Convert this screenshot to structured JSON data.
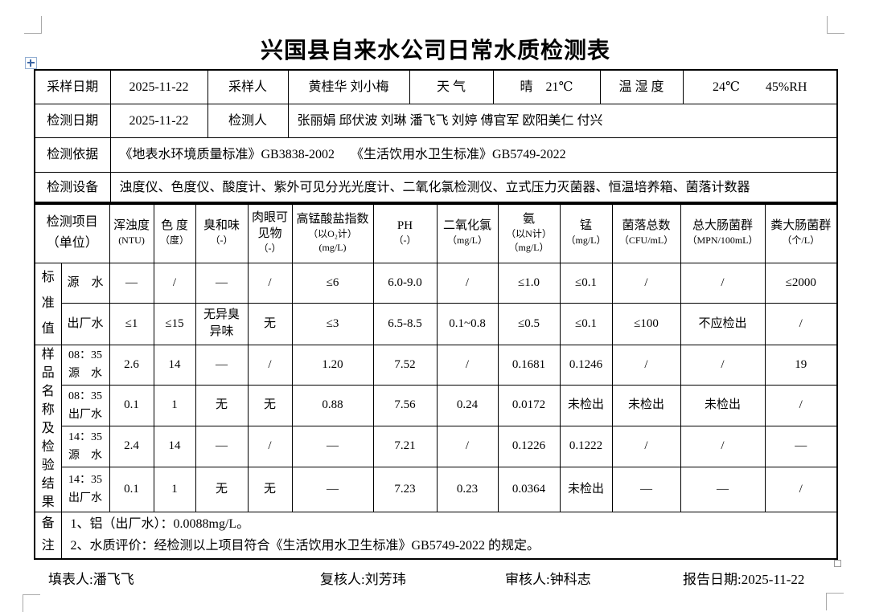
{
  "page": {
    "title": "兴国县自来水公司日常水质检测表"
  },
  "info": {
    "r1": {
      "l1": "采样日期",
      "v1": "2025-11-22",
      "l2": "采样人",
      "v2": "黄桂华 刘小梅",
      "l3": "天  气",
      "v3": "晴　21℃",
      "l4": "温 湿 度",
      "v4": "24℃　　45%RH"
    },
    "r2": {
      "l1": "检测日期",
      "v1": "2025-11-22",
      "l2": "检测人",
      "v2": "张丽娟 邱伏波 刘琳 潘飞飞 刘婷 傅官军 欧阳美仁 付兴"
    },
    "r3": {
      "l1": "检测依据",
      "v1": "《地表水环境质量标准》GB3838-2002　 《生活饮用水卫生标准》GB5749-2022"
    },
    "r4": {
      "l1": "检测设备",
      "v1": "浊度仪、色度仪、酸度计、紫外可见分光光度计、二氧化氯检测仪、立式压力灭菌器、恒温培养箱、菌落计数器"
    }
  },
  "grid": {
    "corner": "检测项目\n（单位）",
    "params": [
      {
        "name": "浑浊度",
        "unit": "(NTU)"
      },
      {
        "name": "色 度",
        "unit": "（度）"
      },
      {
        "name": "臭和味",
        "unit": "（-）"
      },
      {
        "name": "肉眼可\n见物",
        "unit": "（-）"
      },
      {
        "name": "高锰酸盐指数",
        "unit": "（以O₂计）\n(mg/L)"
      },
      {
        "name": "PH",
        "unit": "（-）"
      },
      {
        "name": "二氧化氯",
        "unit": "（mg/L）"
      },
      {
        "name": "氨",
        "unit": "（以N计）\n（mg/L）"
      },
      {
        "name": "锰",
        "unit": "（mg/L）"
      },
      {
        "name": "菌落总数",
        "unit": "（CFU/mL）"
      },
      {
        "name": "总大肠菌群",
        "unit": "（MPN/100mL）"
      },
      {
        "name": "粪大肠菌群",
        "unit": "（个/L）"
      }
    ],
    "standard": {
      "label": "标准值",
      "rows": [
        {
          "name": "源　水",
          "values": [
            "—",
            "/",
            "—",
            "/",
            "≤6",
            "6.0-9.0",
            "/",
            "≤1.0",
            "≤0.1",
            "/",
            "/",
            "≤2000"
          ]
        },
        {
          "name": "出厂水",
          "values": [
            "≤1",
            "≤15",
            "无异臭\n异味",
            "无",
            "≤3",
            "6.5-8.5",
            "0.1~0.8",
            "≤0.5",
            "≤0.1",
            "≤100",
            "不应检出",
            "/"
          ]
        }
      ]
    },
    "samples": {
      "label": "样品名称及检验结果",
      "rows": [
        {
          "name": "08：35\n源　水",
          "values": [
            "2.6",
            "14",
            "—",
            "/",
            "1.20",
            "7.52",
            "/",
            "0.1681",
            "0.1246",
            "/",
            "/",
            "19"
          ]
        },
        {
          "name": "08：35\n出厂水",
          "values": [
            "0.1",
            "1",
            "无",
            "无",
            "0.88",
            "7.56",
            "0.24",
            "0.0172",
            "未检出",
            "未检出",
            "未检出",
            "/"
          ]
        },
        {
          "name": "14：35\n源　水",
          "values": [
            "2.4",
            "14",
            "—",
            "/",
            "—",
            "7.21",
            "/",
            "0.1226",
            "0.1222",
            "/",
            "/",
            "—"
          ]
        },
        {
          "name": "14：35\n出厂水",
          "values": [
            "0.1",
            "1",
            "无",
            "无",
            "—",
            "7.23",
            "0.23",
            "0.0364",
            "未检出",
            "—",
            "—",
            "/"
          ]
        }
      ]
    },
    "notes": {
      "label": "备注",
      "lines": [
        "1、铝（出厂水）：0.0088mg/L。",
        "2、水质评价：经检测以上项目符合《生活饮用水卫生标准》GB5749-2022 的规定。"
      ]
    }
  },
  "footer": {
    "filled_by": "填表人:潘飞飞",
    "reviewed_by": "复核人:刘芳玮",
    "audited_by": "审核人:钟科志",
    "report_date": "报告日期:2025-11-22"
  }
}
